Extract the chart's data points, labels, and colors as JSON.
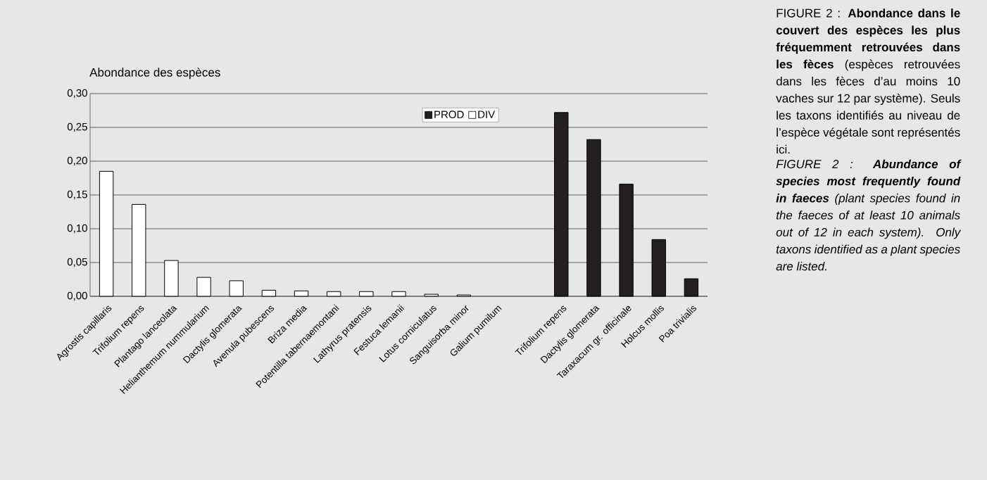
{
  "chart_data": {
    "type": "bar",
    "ylabel": "Abondance des espèces",
    "categories": [
      "Agrostis capillaris",
      "Trifolium repens",
      "Plantago lanceolata",
      "Helianthemum nummularium",
      "Dactylis glomerata",
      "Avenula pubescens",
      "Briza media",
      "Potentilla tabernaemontani",
      "Lathyrus pratensis",
      "Festuca lemanii",
      "Lotus corniculatus",
      "Sanguisorba minor",
      "Galium pumilum",
      null,
      "Trifolium repens",
      "Dactylis glomerata",
      "Taraxacum gr. officinale",
      "Holcus mollis",
      "Poa trivialis"
    ],
    "series": [
      {
        "name": "PROD",
        "color": "#231f20",
        "values": [
          null,
          null,
          null,
          null,
          null,
          null,
          null,
          null,
          null,
          null,
          null,
          null,
          null,
          null,
          0.272,
          0.232,
          0.166,
          0.084,
          0.026
        ]
      },
      {
        "name": "DIV",
        "color": "#ffffff",
        "values": [
          0.185,
          0.136,
          0.053,
          0.028,
          0.023,
          0.009,
          0.008,
          0.007,
          0.007,
          0.007,
          0.003,
          0.002,
          null,
          null,
          null,
          null,
          null,
          null,
          null
        ]
      }
    ],
    "ylim": [
      0,
      0.3
    ],
    "yticks": [
      {
        "value": 0,
        "label": "0,00"
      },
      {
        "value": 0.05,
        "label": "0,05"
      },
      {
        "value": 0.1,
        "label": "0,10"
      },
      {
        "value": 0.15,
        "label": "0,15"
      },
      {
        "value": 0.2,
        "label": "0,20"
      },
      {
        "value": 0.25,
        "label": "0,25"
      },
      {
        "value": 0.3,
        "label": "0,30"
      }
    ],
    "grid": "y",
    "legend": "top",
    "annotations": [
      "FIGURE 2 : **Abondance dans le couvert des espèces les plus fréquemment retrouvées dans les fèces** (espèces retrouvées dans les fèces d’au moins 10 vaches sur 12 par système). Seuls les taxons identifiés au niveau de l’espèce végétale sont représentés ici.",
      "FIGURE 2 : **Abundance of species most frequently found in faeces** (plant species found in the faeces of at least 10 animals out of 12 in each system). Only taxons identified as a plant species are listed."
    ]
  }
}
